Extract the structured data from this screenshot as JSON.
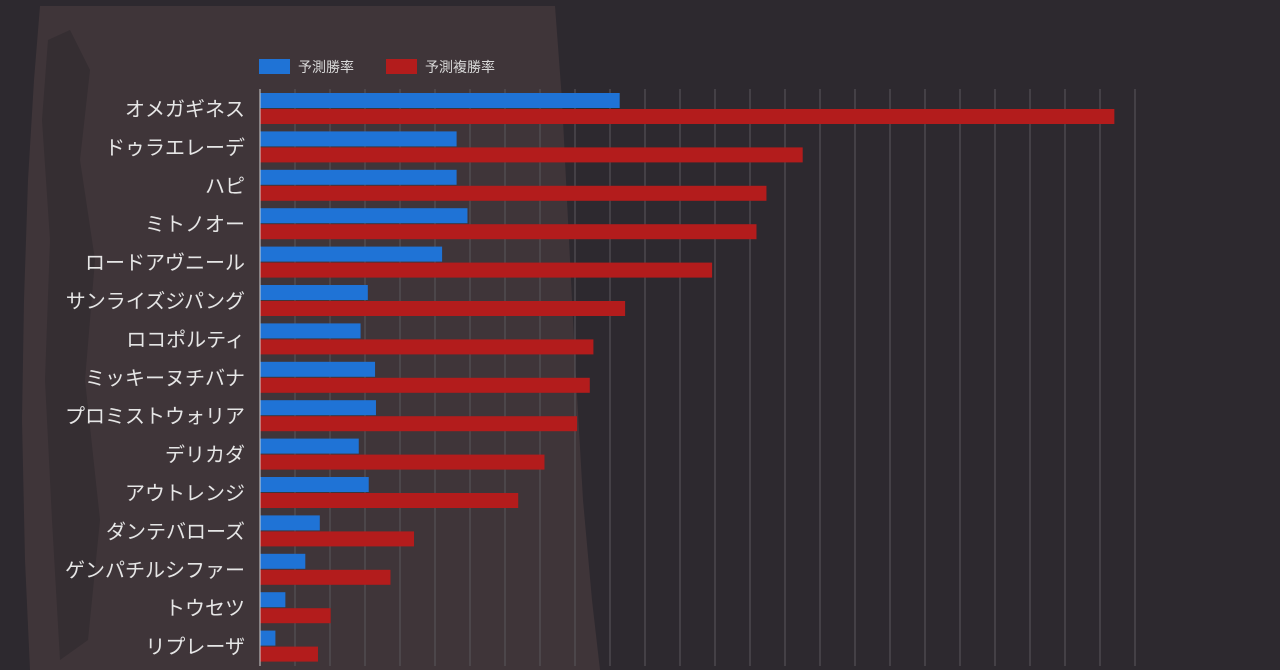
{
  "chart_data": {
    "type": "bar",
    "orientation": "horizontal",
    "title": "",
    "xlabel": "",
    "ylabel": "",
    "xlim": [
      0,
      1
    ],
    "grid": true,
    "legend_position": "top-left",
    "categories": [
      "オメガギネス",
      "ドゥラエレーデ",
      "ハピ",
      "ミトノオー",
      "ロードアヴニール",
      "サンライズジパング",
      "ロコポルティ",
      "ミッキーヌチバナ",
      "プロミストウォリア",
      "デリカダ",
      "アウトレンジ",
      "ダンテバローズ",
      "ゲンパチルシファー",
      "トウセツ",
      "リプレーザ"
    ],
    "series": [
      {
        "name": "予測勝率",
        "color": "#1f73d6",
        "values": [
          0.397,
          0.217,
          0.217,
          0.229,
          0.201,
          0.119,
          0.111,
          0.127,
          0.128,
          0.109,
          0.12,
          0.066,
          0.05,
          0.028,
          0.017
        ]
      },
      {
        "name": "予測複勝率",
        "color": "#b31c1c",
        "values": [
          0.943,
          0.599,
          0.559,
          0.548,
          0.499,
          0.403,
          0.368,
          0.364,
          0.35,
          0.314,
          0.285,
          0.17,
          0.144,
          0.078,
          0.064
        ]
      }
    ]
  }
}
